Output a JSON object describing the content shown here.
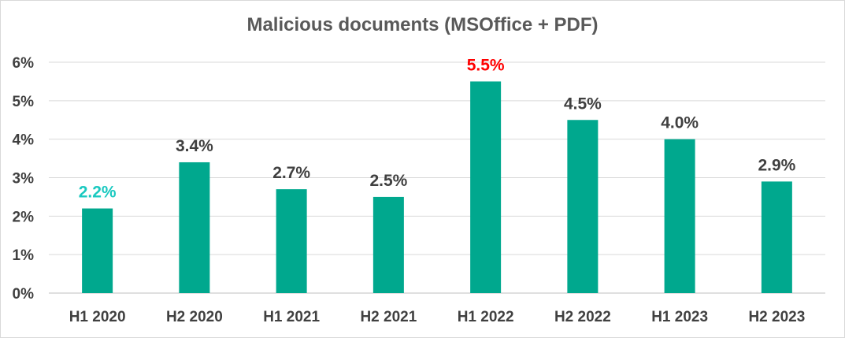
{
  "chart_data": {
    "type": "bar",
    "title": "Malicious documents (MSOffice + PDF)",
    "xlabel": "",
    "ylabel": "",
    "categories": [
      "H1 2020",
      "H2 2020",
      "H1 2021",
      "H2 2021",
      "H1 2022",
      "H2 2022",
      "H1 2023",
      "H2 2023"
    ],
    "values": [
      2.2,
      3.4,
      2.7,
      2.5,
      5.5,
      4.5,
      4.0,
      2.9
    ],
    "data_labels": [
      "2.2%",
      "3.4%",
      "2.7%",
      "2.5%",
      "5.5%",
      "4.5%",
      "4.0%",
      "2.9%"
    ],
    "label_colors": [
      "#1ac9c0",
      "#404040",
      "#404040",
      "#404040",
      "#ff0000",
      "#404040",
      "#404040",
      "#404040"
    ],
    "ylim": [
      0,
      6
    ],
    "yticks": [
      0,
      1,
      2,
      3,
      4,
      5,
      6
    ],
    "ytick_labels": [
      "0%",
      "1%",
      "2%",
      "3%",
      "4%",
      "5%",
      "6%"
    ],
    "bar_color": "#00a88e",
    "grid": true,
    "legend": "none"
  }
}
